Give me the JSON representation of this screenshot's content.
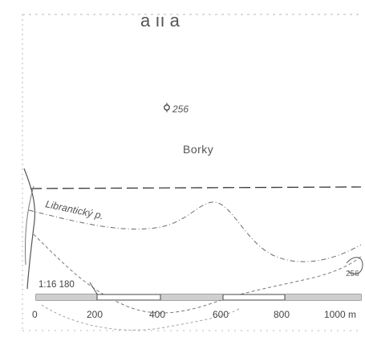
{
  "map": {
    "partial_title": "a  ıı  a",
    "elevation_label": "256",
    "place_name": "Borky",
    "stream_name": "Librantický p.",
    "secondary_elevation": "256",
    "scale": {
      "ratio": "1:16 180",
      "ticks": [
        "0",
        "200",
        "400",
        "600",
        "800",
        "1000 m"
      ]
    },
    "colors": {
      "ink": "#4a4a4a",
      "faint_ink": "#8a8a8a",
      "paper": "#ffffff",
      "bar_fill": "#cfcfcf"
    }
  }
}
